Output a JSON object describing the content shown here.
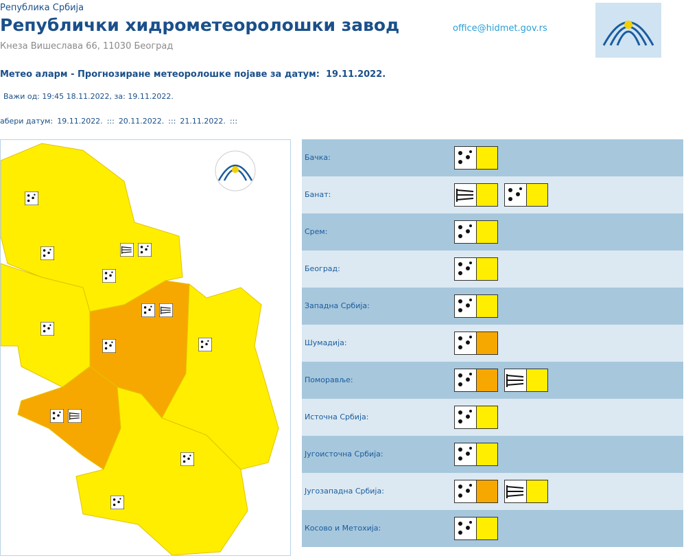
{
  "header": {
    "country": "Република Србија",
    "title": "Републички хидрометеоролошки завод",
    "address": "Кнеза Вишеслава 66, 11030 Београд",
    "email": "office@hidmet.gov.rs"
  },
  "alarm": {
    "heading": "Метео аларм - Прогнозиране метеоролошке појаве за датум:",
    "date": "19.11.2022.",
    "valid": "Важи од: 19:45 18.11.2022, за: 19.11.2022.",
    "choose": "абери датум:",
    "dates": [
      "19.11.2022.",
      "20.11.2022.",
      "21.11.2022."
    ],
    "separator": ":::"
  },
  "regions": [
    {
      "name": "Бачка:",
      "warnings": [
        {
          "icon": "rain",
          "color": "#ffee00"
        }
      ]
    },
    {
      "name": "Банат:",
      "warnings": [
        {
          "icon": "wind",
          "color": "#ffee00"
        },
        {
          "icon": "rain",
          "color": "#ffee00"
        }
      ]
    },
    {
      "name": "Срем:",
      "warnings": [
        {
          "icon": "rain",
          "color": "#ffee00"
        }
      ]
    },
    {
      "name": "Београд:",
      "warnings": [
        {
          "icon": "rain",
          "color": "#ffee00"
        }
      ]
    },
    {
      "name": "Западна Србија:",
      "warnings": [
        {
          "icon": "rain",
          "color": "#ffee00"
        }
      ]
    },
    {
      "name": "Шумадија:",
      "warnings": [
        {
          "icon": "rain",
          "color": "#f7a800"
        }
      ]
    },
    {
      "name": "Поморавље:",
      "warnings": [
        {
          "icon": "rain",
          "color": "#f7a800"
        },
        {
          "icon": "wind",
          "color": "#ffee00"
        }
      ]
    },
    {
      "name": "Источна Србија:",
      "warnings": [
        {
          "icon": "rain",
          "color": "#ffee00"
        }
      ]
    },
    {
      "name": "Југоисточна Србија:",
      "warnings": [
        {
          "icon": "rain",
          "color": "#ffee00"
        }
      ]
    },
    {
      "name": "Југозападна Србија:",
      "warnings": [
        {
          "icon": "rain",
          "color": "#f7a800"
        },
        {
          "icon": "wind",
          "color": "#ffee00"
        }
      ]
    },
    {
      "name": "Косово и Метохија:",
      "warnings": [
        {
          "icon": "rain",
          "color": "#ffee00"
        }
      ]
    }
  ]
}
